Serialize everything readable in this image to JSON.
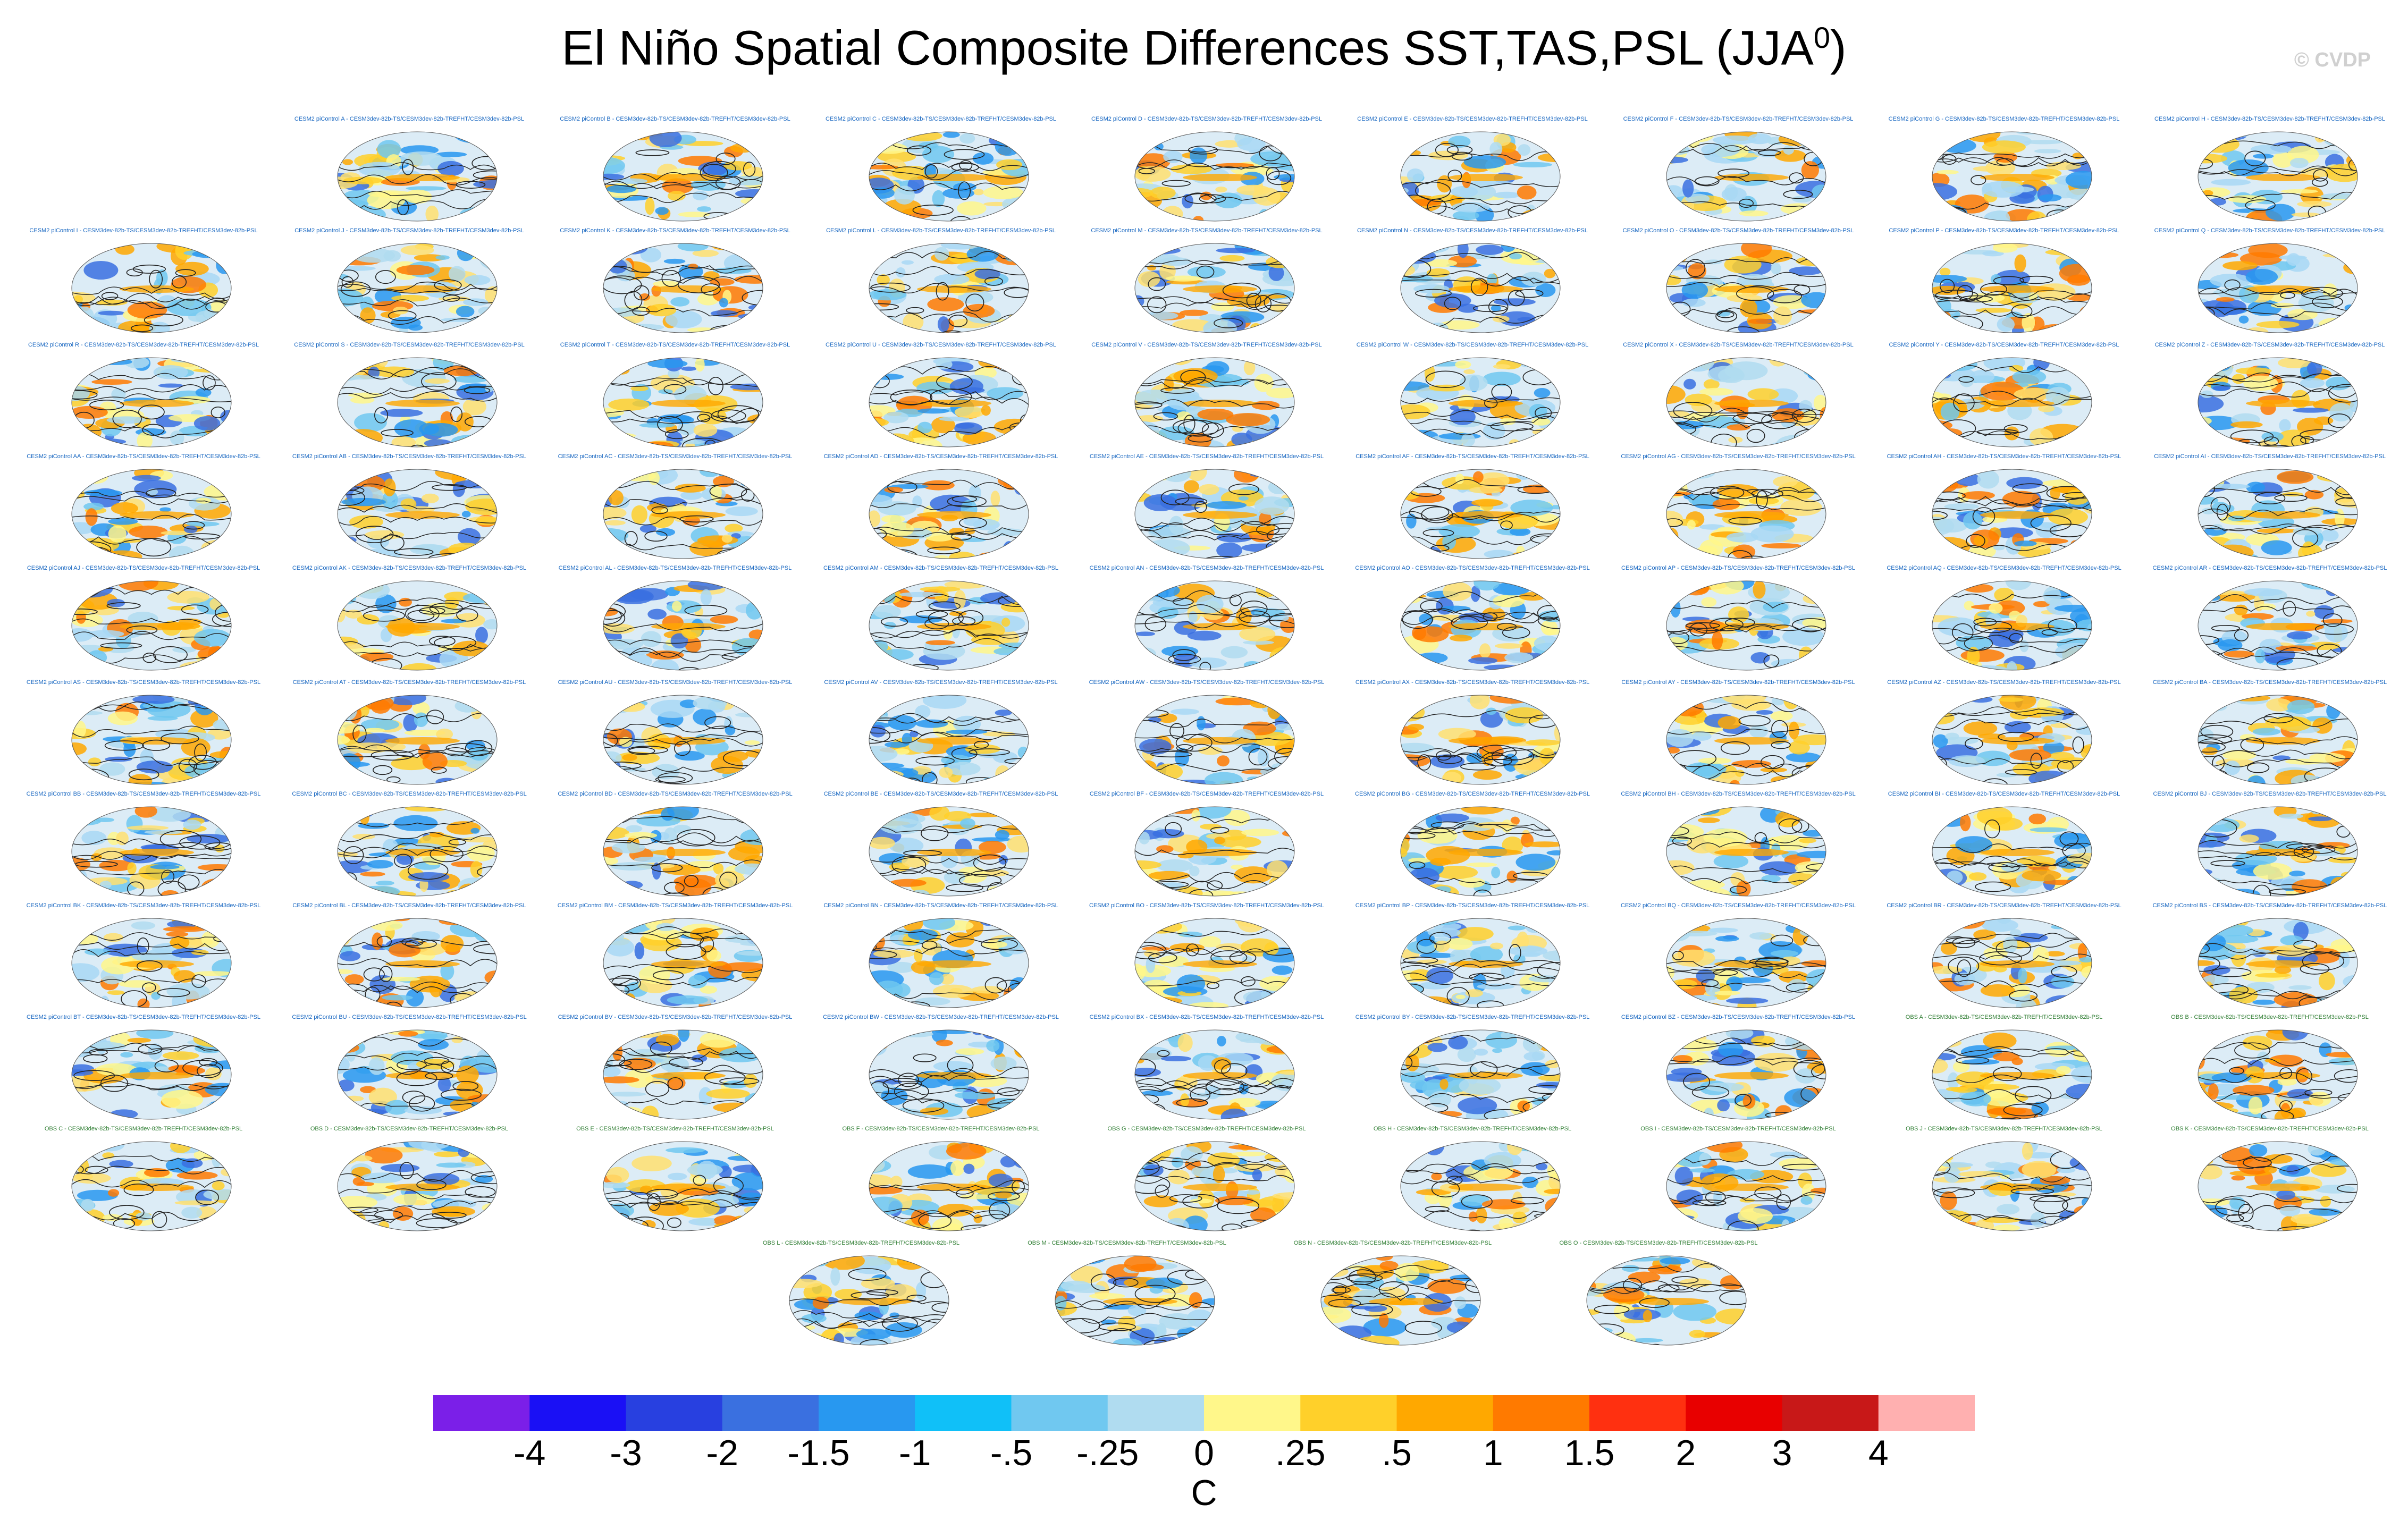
{
  "title": "El Niño Spatial Composite Differences SST,TAS,PSL (JJA",
  "title_superscript": "0",
  "title_close": ")",
  "watermark": "© CVDP",
  "panel_label_suffix": " - CESM3dev-82b-TS/CESM3dev-82b-TREFHT/CESM3dev-82b-PSL",
  "obs_label_suffix": " - CESM3dev-82b-TS/CESM3dev-82b-TREFHT/CESM3dev-82b-PSL",
  "model_panels": [
    "CESM2 piControl A",
    "CESM2 piControl B",
    "CESM2 piControl C",
    "CESM2 piControl D",
    "CESM2 piControl E",
    "CESM2 piControl F",
    "CESM2 piControl G",
    "CESM2 piControl H",
    "CESM2 piControl I",
    "CESM2 piControl J",
    "CESM2 piControl K",
    "CESM2 piControl L",
    "CESM2 piControl M",
    "CESM2 piControl N",
    "CESM2 piControl O",
    "CESM2 piControl P",
    "CESM2 piControl Q",
    "CESM2 piControl R",
    "CESM2 piControl S",
    "CESM2 piControl T",
    "CESM2 piControl U",
    "CESM2 piControl V",
    "CESM2 piControl W",
    "CESM2 piControl X",
    "CESM2 piControl Y",
    "CESM2 piControl Z",
    "CESM2 piControl AA",
    "CESM2 piControl AB",
    "CESM2 piControl AC",
    "CESM2 piControl AD",
    "CESM2 piControl AE",
    "CESM2 piControl AF",
    "CESM2 piControl AG",
    "CESM2 piControl AH",
    "CESM2 piControl AI",
    "CESM2 piControl AJ",
    "CESM2 piControl AK",
    "CESM2 piControl AL",
    "CESM2 piControl AM",
    "CESM2 piControl AN",
    "CESM2 piControl AO",
    "CESM2 piControl AP",
    "CESM2 piControl AQ",
    "CESM2 piControl AR",
    "CESM2 piControl AS",
    "CESM2 piControl AT",
    "CESM2 piControl AU",
    "CESM2 piControl AV",
    "CESM2 piControl AW",
    "CESM2 piControl AX",
    "CESM2 piControl AY",
    "CESM2 piControl AZ",
    "CESM2 piControl BA",
    "CESM2 piControl BB",
    "CESM2 piControl BC",
    "CESM2 piControl BD",
    "CESM2 piControl BE",
    "CESM2 piControl BF",
    "CESM2 piControl BG",
    "CESM2 piControl BH",
    "CESM2 piControl BI",
    "CESM2 piControl BJ",
    "CESM2 piControl BK",
    "CESM2 piControl BL",
    "CESM2 piControl BM",
    "CESM2 piControl BN",
    "CESM2 piControl BO",
    "CESM2 piControl BP",
    "CESM2 piControl BQ",
    "CESM2 piControl BR",
    "CESM2 piControl BS",
    "CESM2 piControl BT",
    "CESM2 piControl BU",
    "CESM2 piControl BV",
    "CESM2 piControl BW",
    "CESM2 piControl BX",
    "CESM2 piControl BY",
    "CESM2 piControl BZ"
  ],
  "obs_panels": [
    "OBS A",
    "OBS B",
    "OBS C",
    "OBS D",
    "OBS E",
    "OBS F",
    "OBS G",
    "OBS H",
    "OBS I",
    "OBS J",
    "OBS K",
    "OBS L",
    "OBS M",
    "OBS N",
    "OBS O"
  ],
  "colorbar": {
    "colors": [
      "#7b1fe8",
      "#1a10f5",
      "#2840e0",
      "#3a70e0",
      "#2898f0",
      "#10c0f8",
      "#70c8f0",
      "#b0dcf0",
      "#fff78a",
      "#ffd02a",
      "#ffa800",
      "#ff7a00",
      "#ff3010",
      "#e80000",
      "#c81818",
      "#ffb0b0"
    ],
    "tick_labels": [
      "-4",
      "-3",
      "-2",
      "-1.5",
      "-1",
      "-.5",
      "-.25",
      "0",
      ".25",
      ".5",
      "1",
      "1.5",
      "2",
      "3",
      "4"
    ],
    "units": "C"
  }
}
